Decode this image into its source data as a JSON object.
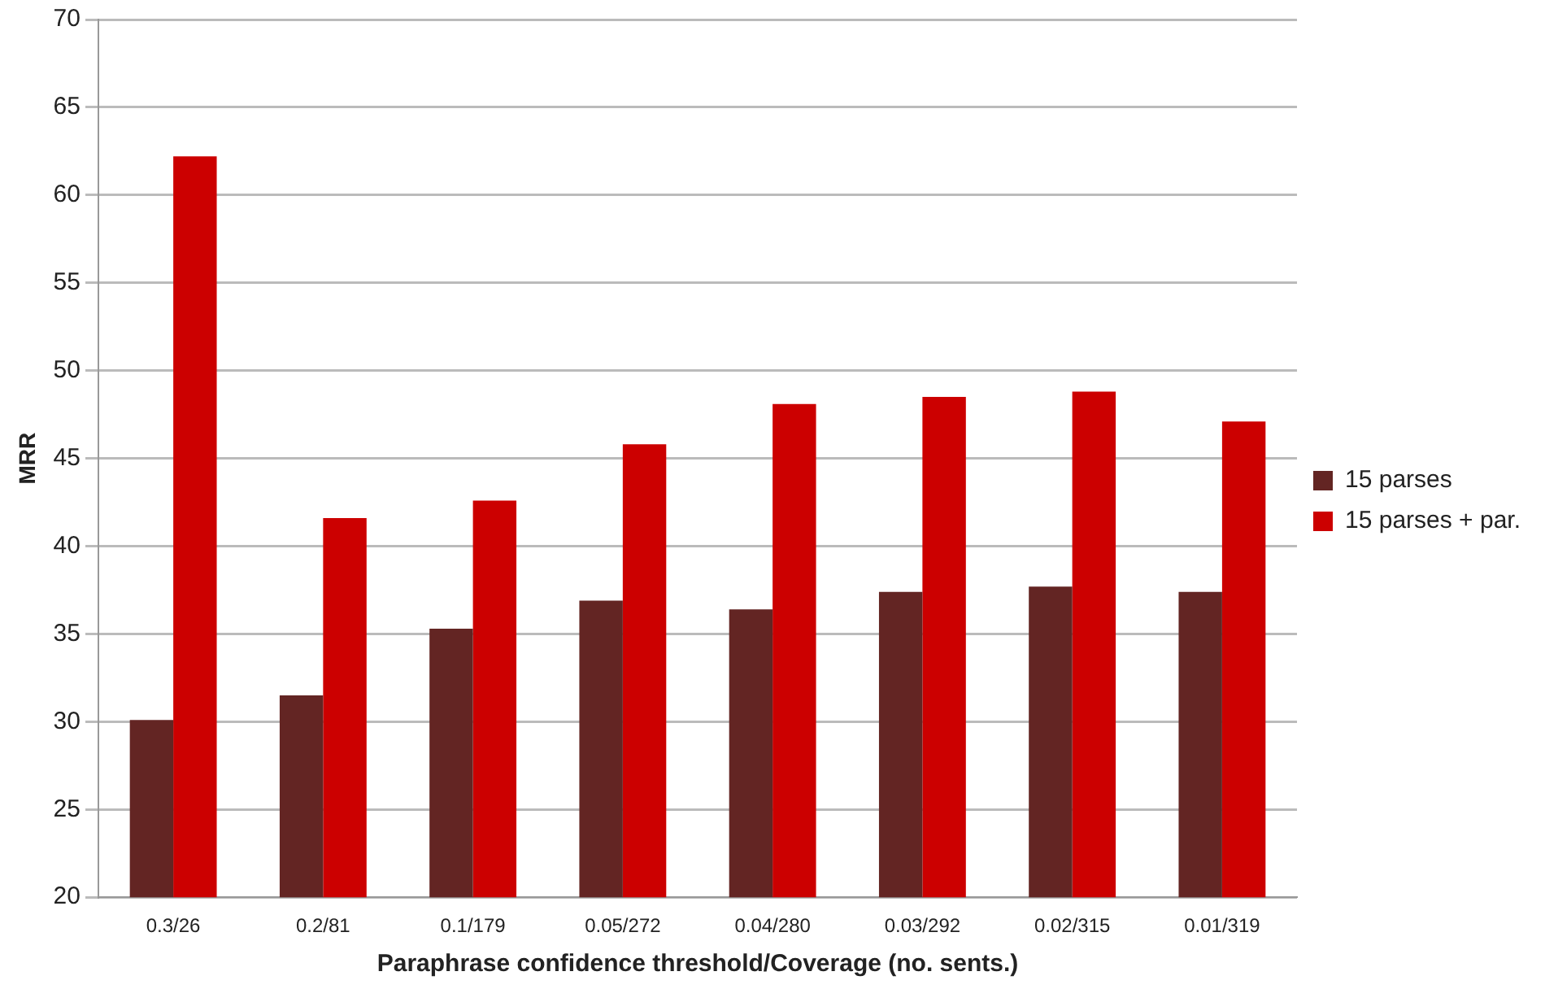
{
  "chart_data": {
    "type": "bar",
    "xlabel": "Paraphrase confidence threshold/Coverage (no. sents.)",
    "ylabel": "MRR",
    "categories": [
      "0.3/26",
      "0.2/81",
      "0.1/179",
      "0.05/272",
      "0.04/280",
      "0.03/292",
      "0.02/315",
      "0.01/319"
    ],
    "series": [
      {
        "name": "15 parses",
        "color": "#632523",
        "values": [
          30.1,
          31.5,
          35.3,
          36.9,
          36.4,
          37.4,
          37.7,
          37.4
        ]
      },
      {
        "name": "15 parses + par.",
        "color": "#cc0000",
        "values": [
          62.2,
          41.6,
          42.6,
          45.8,
          48.1,
          48.5,
          48.8,
          47.1
        ]
      }
    ],
    "ylim": [
      20,
      70
    ],
    "yticks": [
      20,
      25,
      30,
      35,
      40,
      45,
      50,
      55,
      60,
      65,
      70
    ],
    "grid": "y",
    "legend": "right"
  }
}
